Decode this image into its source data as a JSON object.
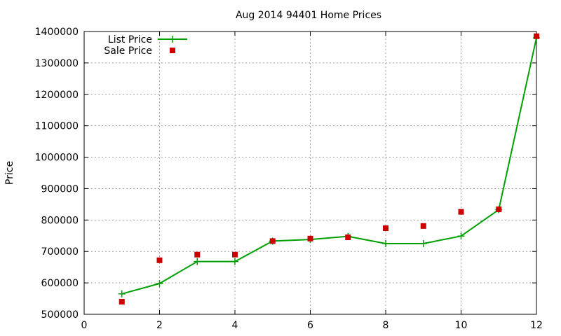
{
  "chart_data": {
    "type": "line",
    "title": "Aug 2014 94401 Home Prices",
    "xlabel": "",
    "ylabel": "Price",
    "xlim": [
      0,
      12
    ],
    "ylim": [
      500000,
      1400000
    ],
    "x_ticks": [
      "0",
      "2",
      "4",
      "6",
      "8",
      "10",
      "12"
    ],
    "y_ticks": [
      "500000",
      "600000",
      "700000",
      "800000",
      "900000",
      "1000000",
      "1100000",
      "1200000",
      "1300000",
      "1400000"
    ],
    "grid": true,
    "legend_position": "top-left",
    "series": [
      {
        "name": "List Price",
        "style": "line+cross",
        "color": "#00a000",
        "x": [
          1,
          2,
          3,
          4,
          5,
          6,
          7,
          8,
          9,
          10,
          11,
          12
        ],
        "y": [
          565000,
          598000,
          668000,
          668000,
          733000,
          738000,
          748000,
          725000,
          725000,
          749000,
          833000,
          1380000
        ]
      },
      {
        "name": "Sale Price",
        "style": "square-markers",
        "color": "#cc0000",
        "x": [
          1,
          2,
          3,
          4,
          5,
          6,
          7,
          8,
          9,
          10,
          11,
          12
        ],
        "y": [
          540000,
          672000,
          690000,
          690000,
          733000,
          741000,
          745000,
          774000,
          781000,
          826000,
          834000,
          1385000
        ]
      }
    ]
  }
}
